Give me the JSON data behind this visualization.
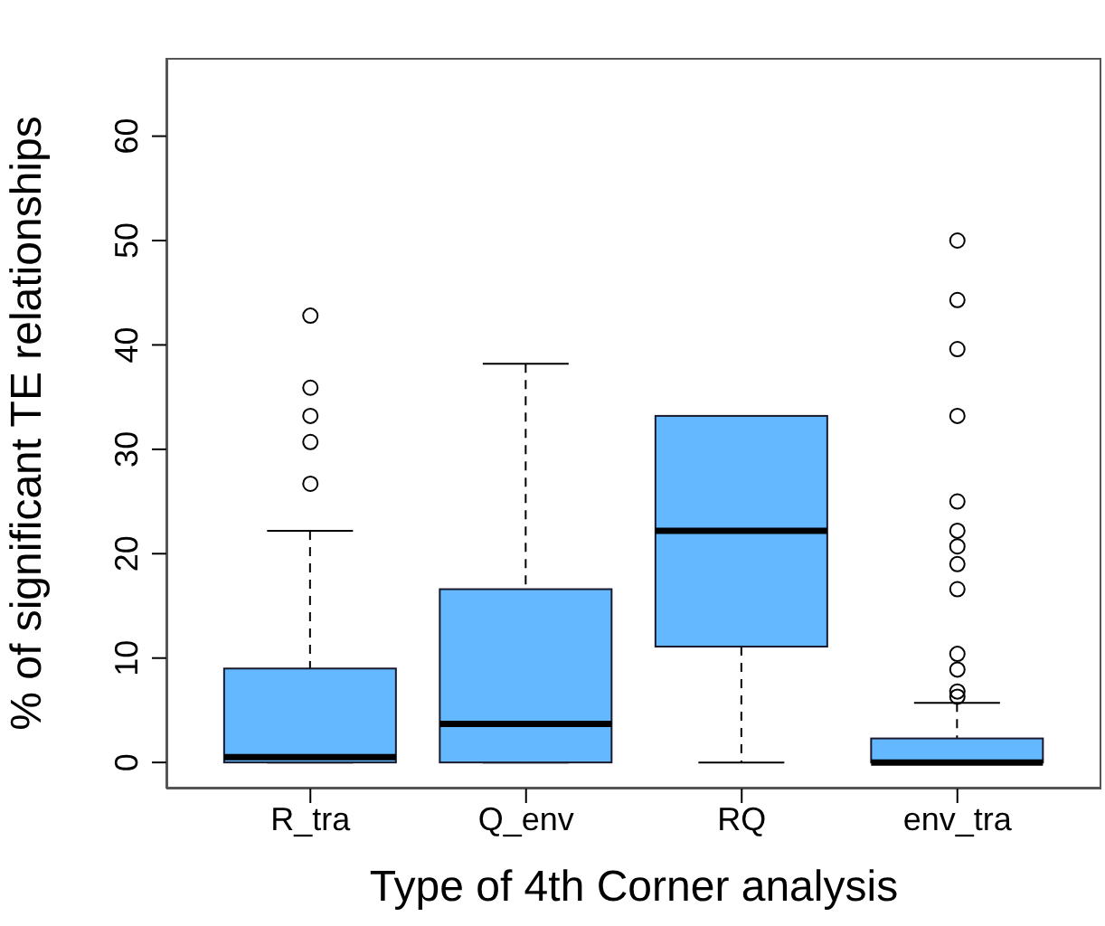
{
  "chart_data": {
    "type": "box",
    "xlabel": "Type of 4th Corner analysis",
    "ylabel": "% of significant TE relationships",
    "categories": [
      "R_tra",
      "Q_env",
      "RQ",
      "env_tra"
    ],
    "ylim": [
      -2.5,
      67.5
    ],
    "yticks": [
      0,
      10,
      20,
      30,
      40,
      50,
      60
    ],
    "grid": false,
    "series": [
      {
        "color": "#63b8ff",
        "boxes": [
          {
            "low": 0,
            "q1": 0,
            "median": 0.5,
            "q3": 9.0,
            "high": 22.2,
            "outliers": [
              26.7,
              30.7,
              33.2,
              35.9,
              42.8
            ]
          },
          {
            "low": 0,
            "q1": 0,
            "median": 3.7,
            "q3": 16.6,
            "high": 38.2
          },
          {
            "low": 0,
            "q1": 11.1,
            "median": 22.2,
            "q3": 33.2,
            "high": 33.2
          },
          {
            "low": 0,
            "q1": 0,
            "median": 0,
            "q3": 2.3,
            "high": 5.7,
            "outliers": [
              6.3,
              6.8,
              8.9,
              10.4,
              16.6,
              19.0,
              20.7,
              22.2,
              25.0,
              33.2,
              39.6,
              44.3,
              50.0
            ]
          }
        ]
      }
    ]
  }
}
